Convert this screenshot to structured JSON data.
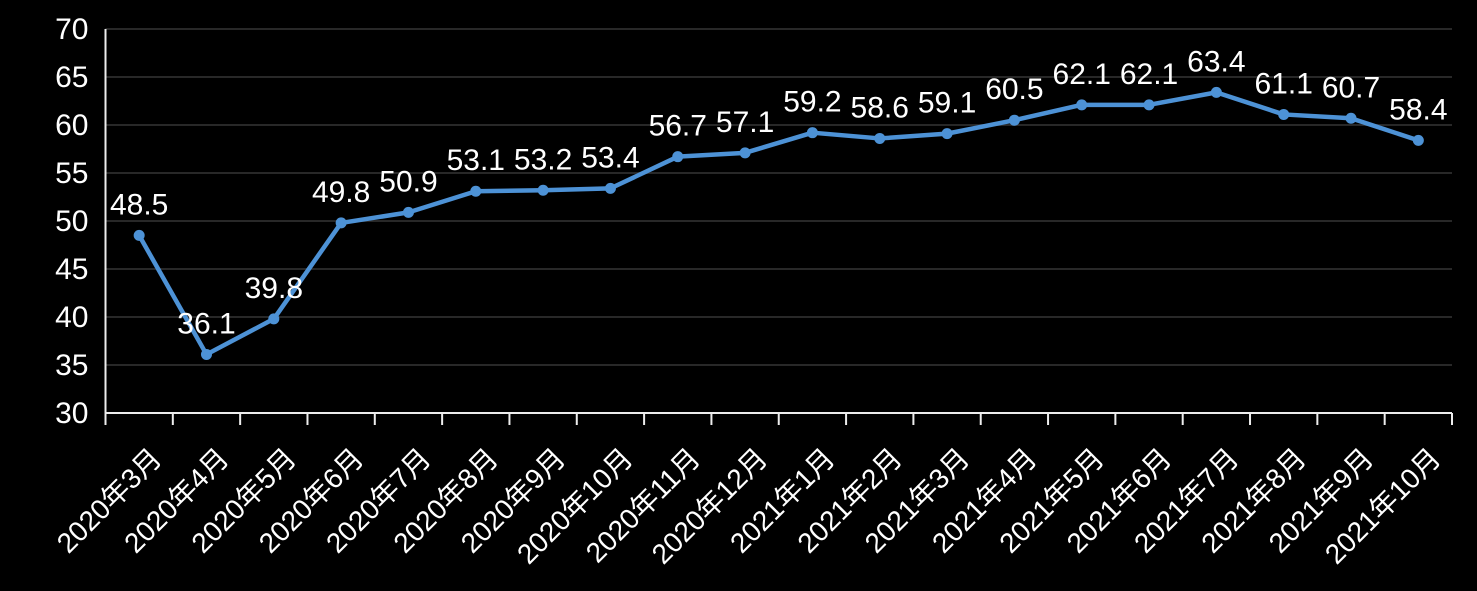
{
  "chart_data": {
    "type": "line",
    "title": "",
    "categories": [
      "2020年3月",
      "2020年4月",
      "2020年5月",
      "2020年6月",
      "2020年7月",
      "2020年8月",
      "2020年9月",
      "2020年10月",
      "2020年11月",
      "2020年12月",
      "2021年1月",
      "2021年2月",
      "2021年3月",
      "2021年4月",
      "2021年5月",
      "2021年6月",
      "2021年7月",
      "2021年8月",
      "2021年9月",
      "2021年10月"
    ],
    "values": [
      48.5,
      36.1,
      39.8,
      49.8,
      50.9,
      53.1,
      53.2,
      53.4,
      56.7,
      57.1,
      59.2,
      58.6,
      59.1,
      60.5,
      62.1,
      62.1,
      63.4,
      61.1,
      60.7,
      58.4
    ],
    "data_labels": [
      "48.5",
      "36.1",
      "39.8",
      "49.8",
      "50.9",
      "53.1",
      "53.2",
      "53.4",
      "56.7",
      "57.1",
      "59.2",
      "58.6",
      "59.1",
      "60.5",
      "62.1",
      "62.1",
      "63.4",
      "61.1",
      "60.7",
      "58.4"
    ],
    "xlabel": "",
    "ylabel": "",
    "ylim": [
      30,
      70
    ],
    "yticks": [
      30,
      35,
      40,
      45,
      50,
      55,
      60,
      65,
      70
    ],
    "grid": true,
    "legend": false,
    "colors": {
      "background": "#000000",
      "line": "#4D92D6",
      "marker": "#4D92D6",
      "text": "#FFFFFF",
      "axis": "#EDEDED",
      "gridline": "#282828"
    }
  }
}
